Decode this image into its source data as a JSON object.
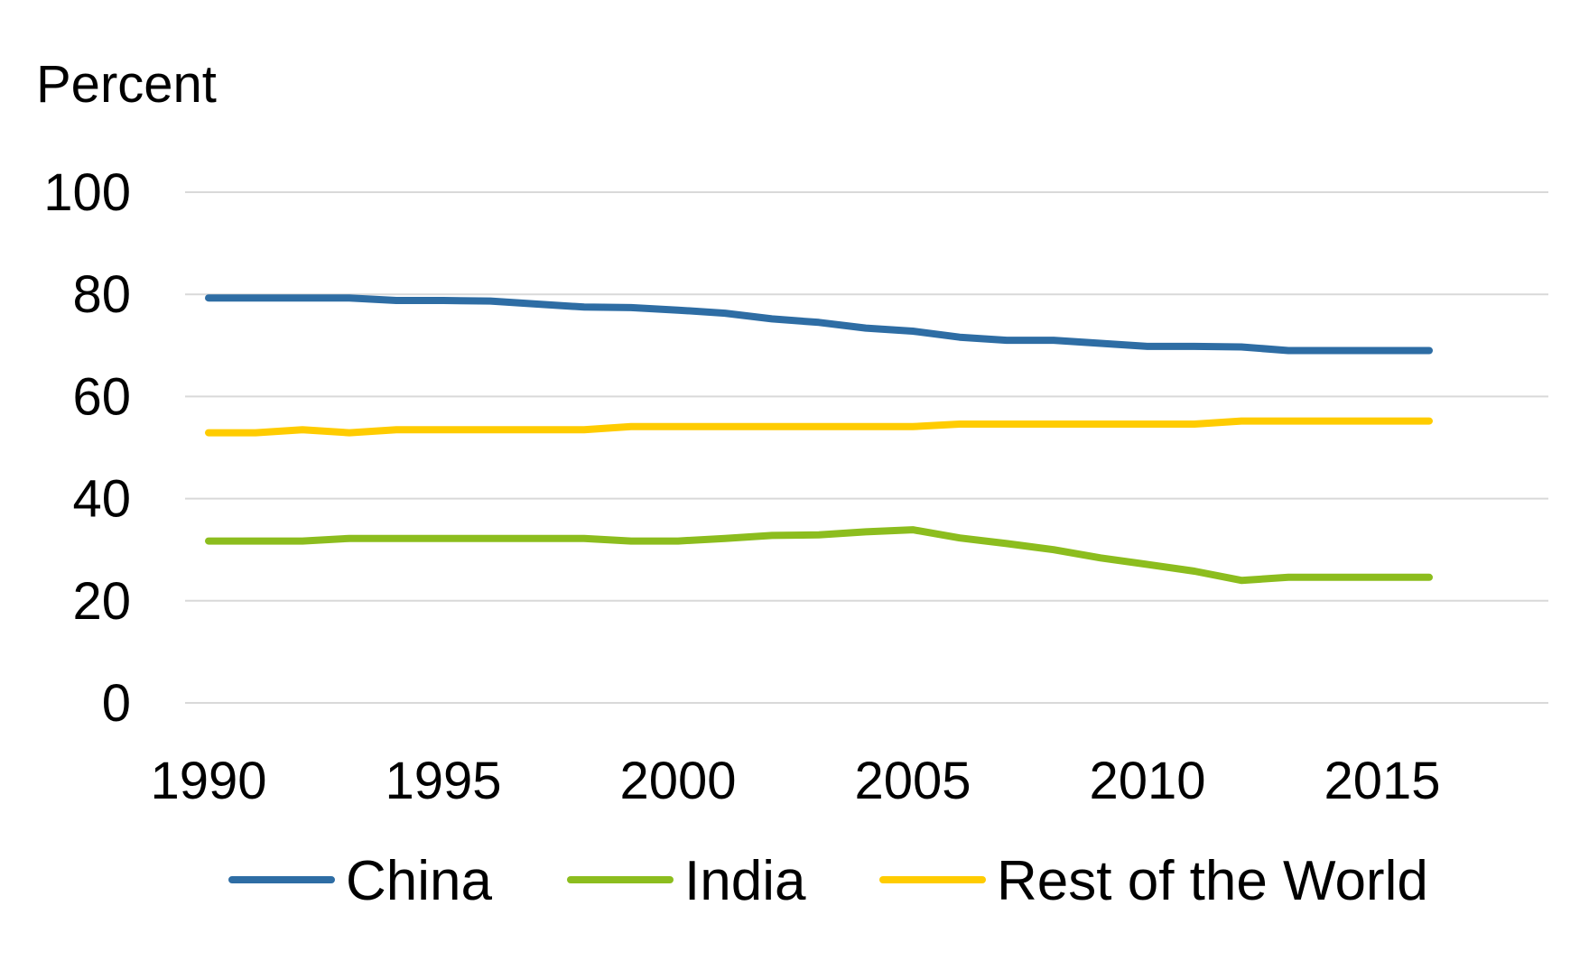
{
  "chart_data": {
    "type": "line",
    "title": "",
    "ylabel": "Percent",
    "xlabel": "",
    "ylim": [
      0,
      100
    ],
    "yticks": [
      "0",
      "20",
      "40",
      "60",
      "80",
      "100"
    ],
    "xticks": [
      "1990",
      "1995",
      "2000",
      "2005",
      "2010",
      "2015"
    ],
    "xlim": [
      1990,
      2019
    ],
    "grid": true,
    "legend_position": "bottom",
    "x": [
      1990,
      1991,
      1992,
      1993,
      1994,
      1995,
      1996,
      1997,
      1998,
      1999,
      2000,
      2001,
      2002,
      2003,
      2004,
      2005,
      2006,
      2007,
      2008,
      2009,
      2010,
      2011,
      2012,
      2013,
      2014,
      2015,
      2016
    ],
    "series": [
      {
        "name": "China",
        "color": "#2e6da4",
        "values": [
          79.3,
          79.3,
          79.3,
          79.3,
          78.8,
          78.8,
          78.7,
          78.1,
          77.5,
          77.4,
          76.9,
          76.3,
          75.2,
          74.5,
          73.4,
          72.8,
          71.6,
          71.0,
          71.0,
          70.4,
          69.8,
          69.8,
          69.7,
          69.0,
          69.0,
          69.0,
          69.0
        ]
      },
      {
        "name": "India",
        "color": "#8cbd1e",
        "values": [
          31.7,
          31.7,
          31.7,
          32.2,
          32.2,
          32.2,
          32.2,
          32.2,
          32.2,
          31.7,
          31.7,
          32.2,
          32.8,
          32.9,
          33.5,
          33.9,
          32.3,
          31.2,
          30.0,
          28.4,
          27.1,
          25.8,
          24.0,
          24.6,
          24.6,
          24.6,
          24.6
        ]
      },
      {
        "name": "Rest of the World",
        "color": "#ffcc00",
        "values": [
          52.9,
          52.9,
          53.5,
          52.9,
          53.5,
          53.5,
          53.5,
          53.5,
          53.5,
          54.1,
          54.1,
          54.1,
          54.1,
          54.1,
          54.1,
          54.1,
          54.6,
          54.6,
          54.6,
          54.6,
          54.6,
          54.6,
          55.2,
          55.2,
          55.2,
          55.2,
          55.2
        ]
      }
    ]
  }
}
